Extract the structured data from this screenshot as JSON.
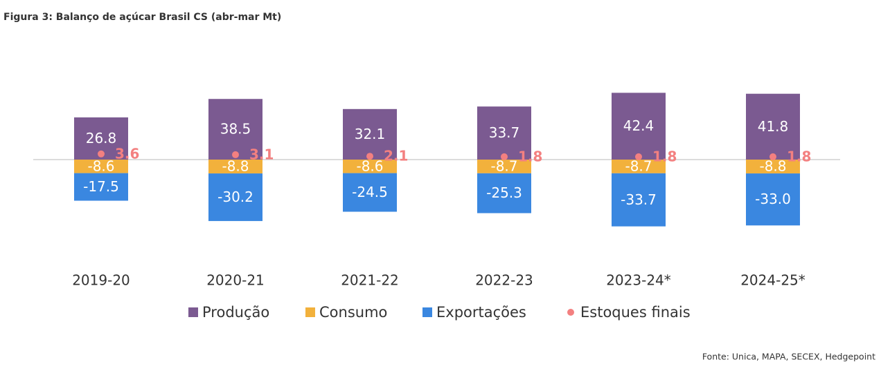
{
  "chart_data": {
    "type": "bar",
    "title": "Figura 3: Balanço de açúcar Brasil CS (abr-mar Mt)",
    "categories": [
      "2019-20",
      "2020-21",
      "2021-22",
      "2022-23",
      "2023-24*",
      "2024-25*"
    ],
    "series": [
      {
        "name": "Produção",
        "type": "bar",
        "color": "#7b5a91",
        "values": [
          26.8,
          38.5,
          32.1,
          33.7,
          42.4,
          41.8
        ]
      },
      {
        "name": "Consumo",
        "type": "bar",
        "color": "#f2b13c",
        "values": [
          -8.6,
          -8.8,
          -8.6,
          -8.7,
          -8.7,
          -8.8
        ]
      },
      {
        "name": "Exportações",
        "type": "bar",
        "color": "#3a87e0",
        "values": [
          -17.5,
          -30.2,
          -24.5,
          -25.3,
          -33.7,
          -33.0
        ],
        "value_labels": [
          "-17.5",
          "-30.2",
          "-24.5",
          "-25.3",
          "-33.7",
          "-33.0"
        ]
      },
      {
        "name": "Estoques finais",
        "type": "scatter",
        "color": "#f38080",
        "values": [
          3.6,
          3.1,
          2.1,
          1.8,
          1.8,
          1.8
        ]
      }
    ],
    "source": "Fonte: Unica, MAPA, SECEX, Hedgepoint"
  }
}
